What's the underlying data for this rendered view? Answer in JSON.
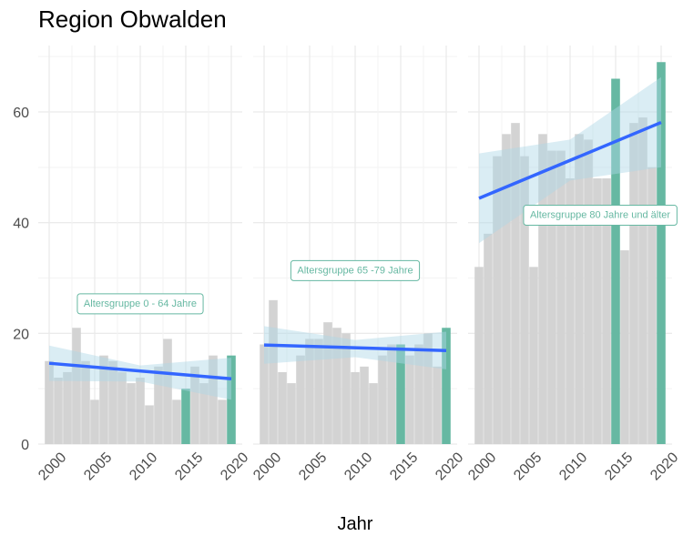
{
  "title": "Region Obwalden",
  "chart_data": {
    "type": "bar",
    "title": "Region Obwalden",
    "xlabel": "Jahr",
    "ylabel": "",
    "ylim": [
      0,
      72
    ],
    "xlim": [
      1998.8,
      2021.2
    ],
    "x_ticks": [
      2000,
      2005,
      2010,
      2015,
      2020
    ],
    "y_ticks": [
      0,
      20,
      40,
      60
    ],
    "grid": true,
    "colors": {
      "bar": "#d3d3d3",
      "highlight": "#66b8a2",
      "trend": "#3366ff",
      "band": "#add8e6",
      "annotation": "#66b8a2"
    },
    "panels": [
      {
        "label": "Altersgruppe 0 - 64 Jahre",
        "x": [
          2000,
          2001,
          2002,
          2003,
          2004,
          2005,
          2006,
          2007,
          2008,
          2009,
          2010,
          2011,
          2012,
          2013,
          2014,
          2015,
          2016,
          2017,
          2018,
          2019,
          2020
        ],
        "values": [
          15,
          12,
          13,
          21,
          15,
          8,
          16,
          15,
          13,
          11,
          12,
          7,
          14,
          19,
          8,
          10,
          14,
          11,
          16,
          8,
          16
        ],
        "highlight_years": [
          2015,
          2020
        ],
        "annotation_x": 2010,
        "annotation_y": 25.5,
        "trend": {
          "x": [
            2000,
            2020
          ],
          "y": [
            14.6,
            11.8
          ]
        },
        "band": {
          "x": [
            2000,
            2010,
            2020
          ],
          "upper": [
            17.8,
            14.2,
            15.6
          ],
          "lower": [
            11.4,
            11.3,
            8.0
          ]
        }
      },
      {
        "label": "Altersgruppe 65 -79 Jahre",
        "x": [
          2000,
          2001,
          2002,
          2003,
          2004,
          2005,
          2006,
          2007,
          2008,
          2009,
          2010,
          2011,
          2012,
          2013,
          2014,
          2015,
          2016,
          2017,
          2018,
          2019,
          2020
        ],
        "values": [
          18,
          26,
          13,
          11,
          16,
          19,
          19,
          22,
          21,
          20,
          13,
          14,
          11,
          16,
          18,
          18,
          16,
          18,
          20,
          14,
          21
        ],
        "highlight_years": [
          2015,
          2020
        ],
        "annotation_x": 2010,
        "annotation_y": 31.5,
        "trend": {
          "x": [
            2000,
            2020
          ],
          "y": [
            17.9,
            16.9
          ]
        },
        "band": {
          "x": [
            2000,
            2010,
            2020
          ],
          "upper": [
            21.3,
            18.8,
            20.3
          ],
          "lower": [
            14.5,
            15.7,
            13.5
          ]
        }
      },
      {
        "label": "Altersgruppe 80 Jahre und älter",
        "x": [
          2000,
          2001,
          2002,
          2003,
          2004,
          2005,
          2006,
          2007,
          2008,
          2009,
          2010,
          2011,
          2012,
          2013,
          2014,
          2015,
          2016,
          2017,
          2018,
          2019,
          2020
        ],
        "values": [
          32,
          38,
          52,
          56,
          58,
          52,
          32,
          56,
          53,
          53,
          48,
          56,
          55,
          48,
          48,
          66,
          35,
          58,
          59,
          50,
          69
        ],
        "highlight_years": [
          2015,
          2020
        ],
        "annotation_x": 2013.3,
        "annotation_y": 41.5,
        "trend": {
          "x": [
            2000,
            2020
          ],
          "y": [
            44.4,
            58.1
          ]
        },
        "band": {
          "x": [
            2000,
            2010,
            2020
          ],
          "upper": [
            52.5,
            55.0,
            66.3
          ],
          "lower": [
            36.3,
            47.6,
            50.0
          ]
        }
      }
    ]
  }
}
